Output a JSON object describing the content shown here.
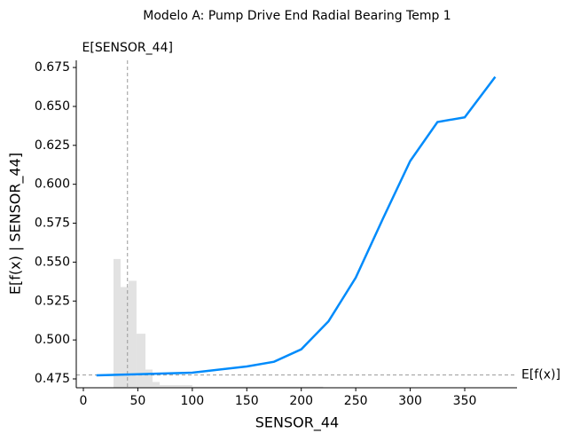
{
  "chart_data": {
    "type": "line",
    "title": "Modelo A: Pump Drive End Radial Bearing Temp 1",
    "x_label": "SENSOR_44",
    "y_label": "E[f(x) | SENSOR_44]",
    "x": [
      12,
      50,
      100,
      150,
      175,
      200,
      225,
      250,
      275,
      300,
      325,
      350,
      378
    ],
    "series": [
      {
        "name": "SENSOR_44",
        "color": "#008bfb",
        "values": [
          0.4773,
          0.478,
          0.479,
          0.483,
          0.486,
          0.494,
          0.512,
          0.54,
          0.578,
          0.615,
          0.64,
          0.643,
          0.669
        ]
      }
    ],
    "histogram": {
      "color": "#e2e2e2",
      "bins": [
        27.7,
        34.2,
        41.5,
        48.8,
        57,
        63.5,
        70,
        100,
        220
      ],
      "values": [
        0.552,
        0.534,
        0.538,
        0.504,
        0.481,
        0.473,
        0.471,
        0.47
      ]
    },
    "expected_value": {
      "label": "E[f(x)]",
      "value": 0.4775
    },
    "expected_feature": {
      "label": "E[SENSOR_44]",
      "value": 40.5
    },
    "xlim": [
      -6.5,
      398
    ],
    "ylim": [
      0.4693,
      0.6796
    ],
    "xticks": [
      0,
      50,
      100,
      150,
      200,
      250,
      300,
      350
    ],
    "yticks": [
      0.475,
      {
        "value": 0.5,
        "label": "0.500"
      },
      0.525,
      {
        "value": 0.55,
        "label": "0.550"
      },
      0.575,
      {
        "value": 0.6,
        "label": "0.600"
      },
      0.625,
      {
        "value": 0.65,
        "label": "0.650"
      },
      0.675
    ]
  }
}
